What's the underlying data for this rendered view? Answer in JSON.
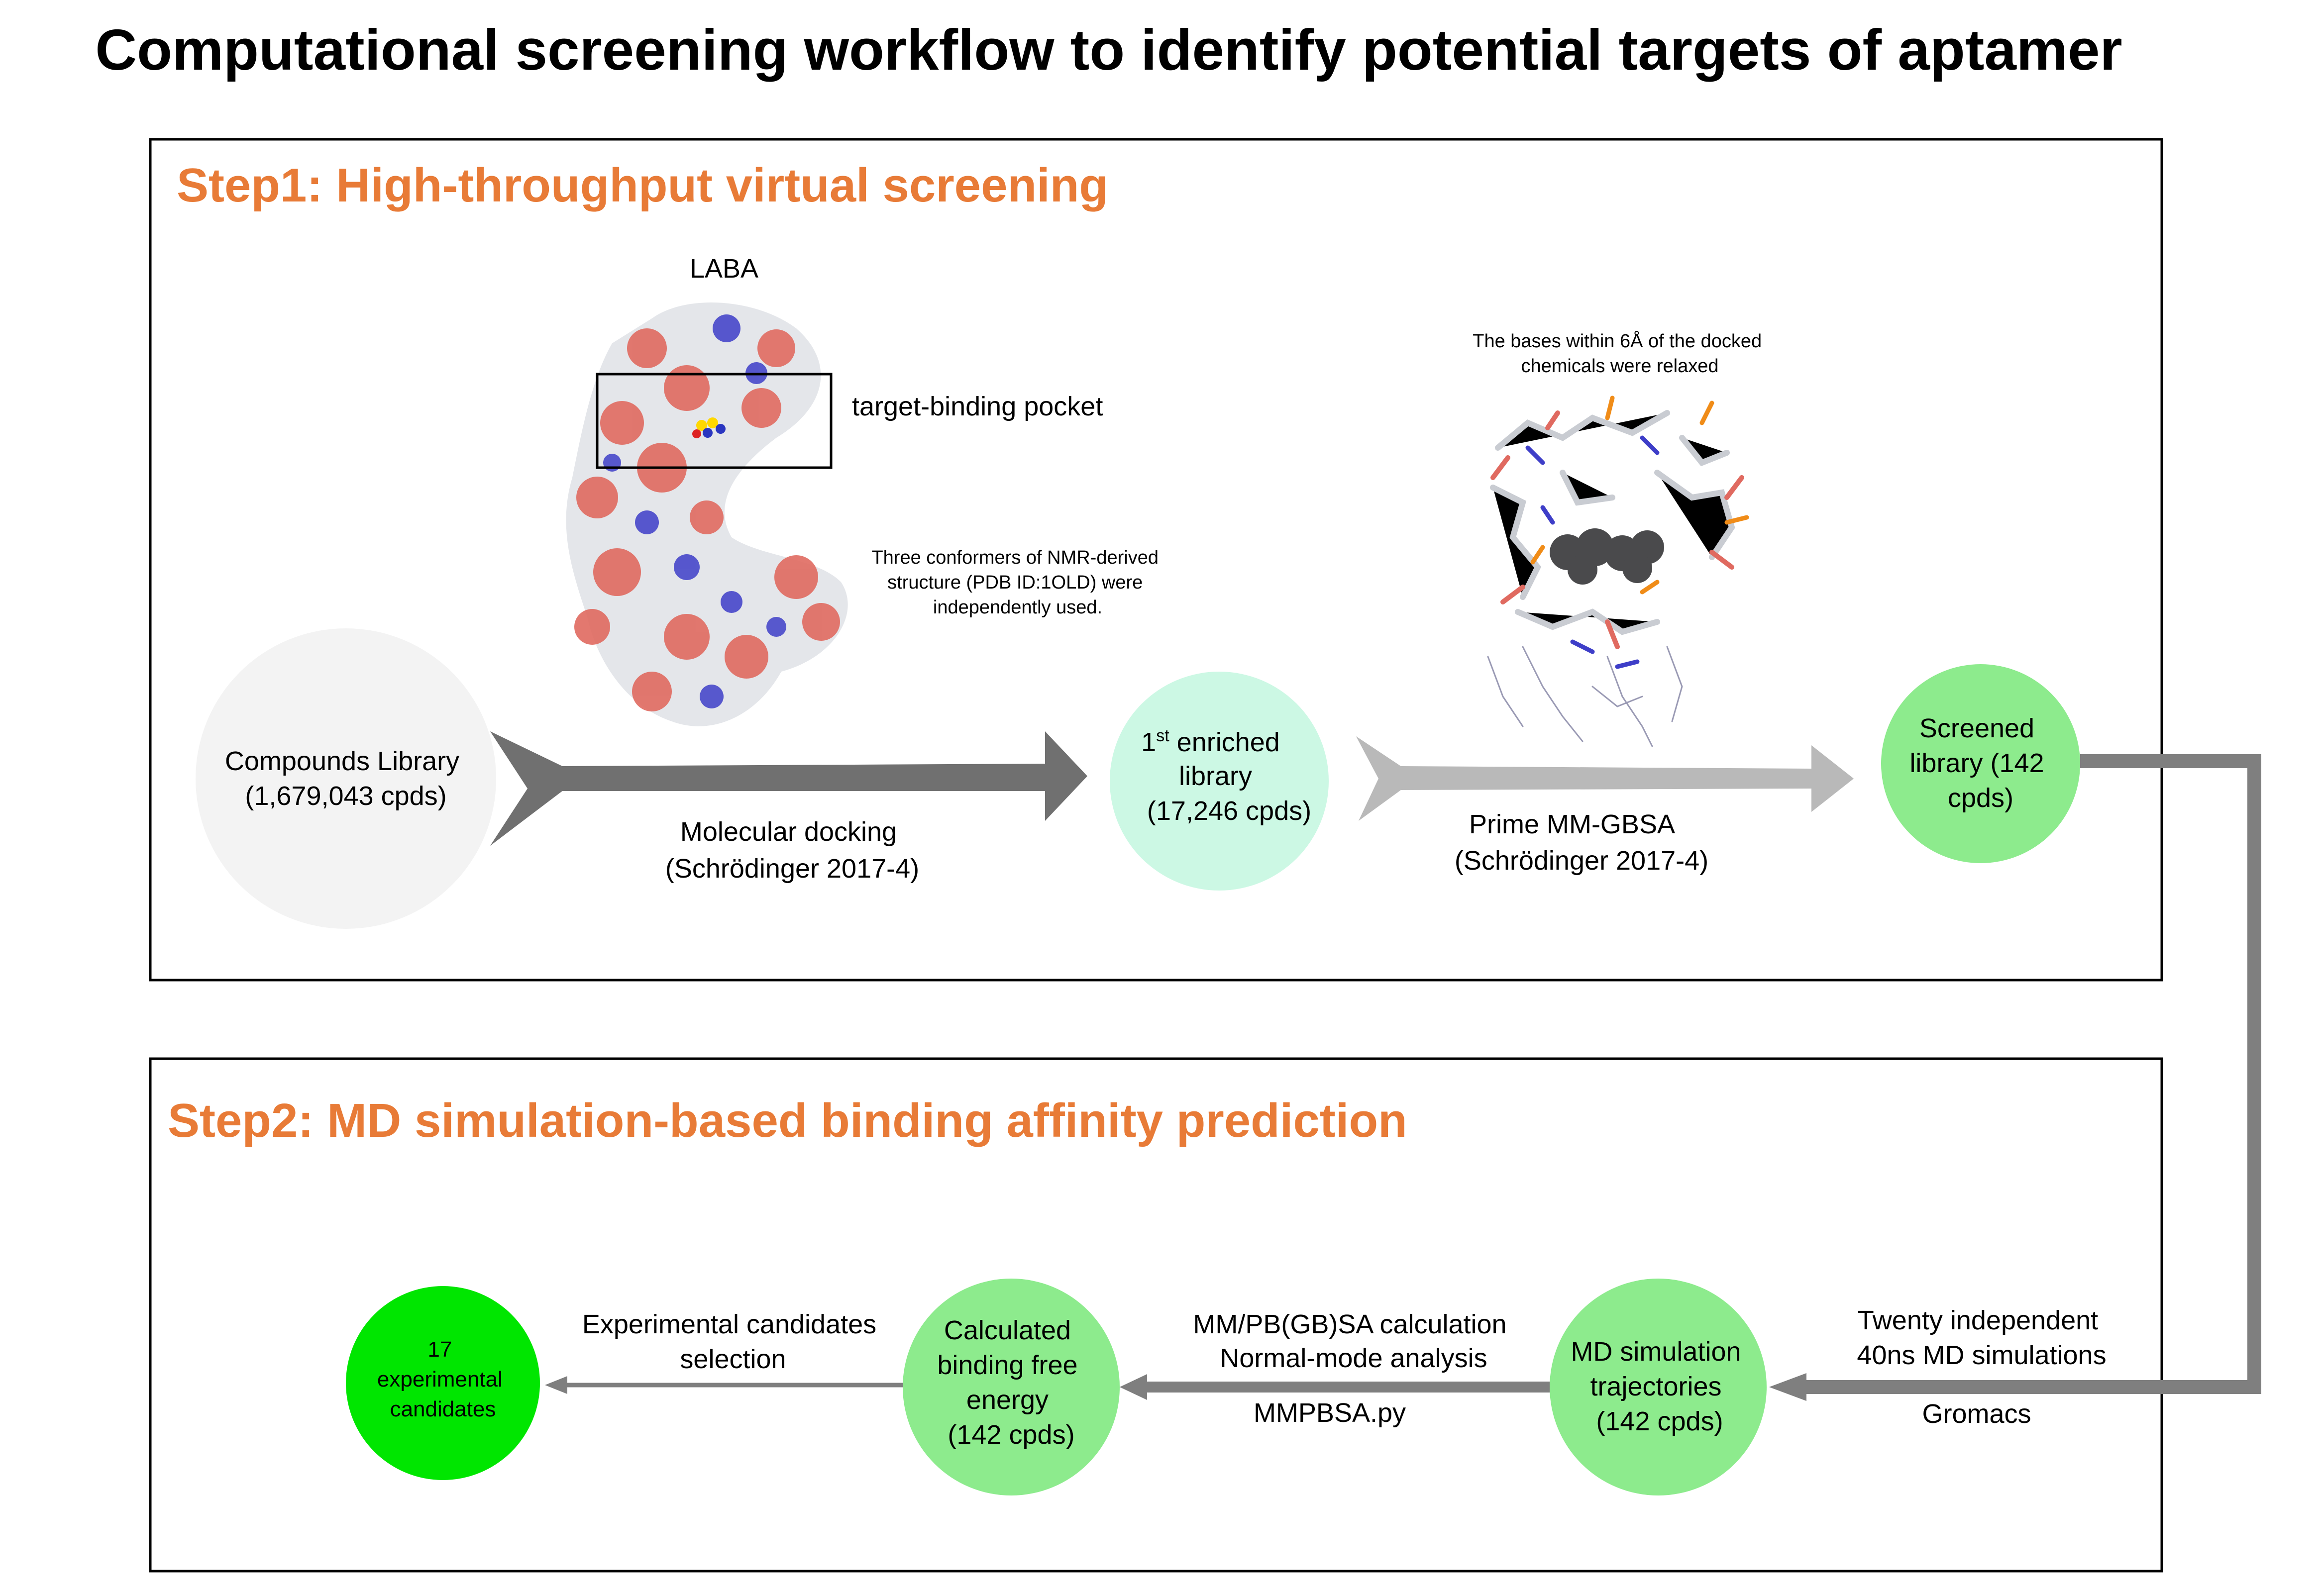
{
  "title": "Computational screening workflow to identify potential targets of aptamer",
  "colors": {
    "step_heading": "#E87B37",
    "box_border": "#000000",
    "circle_compounds": "#F3F3F3",
    "circle_enriched": "#CCF8E4",
    "circle_screened": "#8DEB8D",
    "circle_md": "#8DEB8D",
    "circle_free_energy": "#8DEB8D",
    "circle_experimental": "#00E600",
    "arrow_dark": "#707070",
    "arrow_light": "#B9B9B9",
    "connector": "#7F7F7F",
    "surface_neg": "#E06A60",
    "surface_pos": "#3E3EC8",
    "surface_neutral": "#E4E6EA"
  },
  "step1": {
    "heading": "Step1: High-throughput virtual screening",
    "laba_label": "LABA",
    "pocket_label": "target-binding pocket",
    "conformer_note": [
      "Three conformers of NMR-derived",
      "structure (PDB ID:1OLD) were",
      "independently used."
    ],
    "relax_note": [
      "The bases within 6Å of the docked",
      "chemicals were relaxed"
    ],
    "compounds": {
      "line1": "Compounds Library",
      "line2": "(1,679,043 cpds)"
    },
    "docking": {
      "line1": "Molecular docking",
      "line2": "(Schrödinger 2017-4)"
    },
    "enriched": {
      "ordinal": "1",
      "sup": "st",
      "line1_rest": " enriched",
      "line2": "library",
      "line3": "(17,246 cpds)"
    },
    "mmgbsa": {
      "line1": "Prime MM-GBSA",
      "line2": "(Schrödinger 2017-4)"
    },
    "screened": {
      "line1": "Screened",
      "line2": "library (142",
      "line3": "cpds)"
    }
  },
  "step2": {
    "heading": "Step2: MD simulation-based binding affinity prediction",
    "md_sims": {
      "line1": "Twenty independent",
      "line2": "40ns MD simulations"
    },
    "gromacs": "Gromacs",
    "md_traj": {
      "line1": "MD simulation",
      "line2": "trajectories",
      "line3": "(142 cpds)"
    },
    "mmpbsa": {
      "line1": "MM/PB(GB)SA calculation",
      "line2": "Normal-mode analysis"
    },
    "mmpbsa_py": "MMPBSA.py",
    "free_energy": {
      "line1": "Calculated",
      "line2": "binding free",
      "line3": "energy",
      "line4": "(142 cpds)"
    },
    "exp_selection": {
      "line1": "Experimental candidates",
      "line2": "selection"
    },
    "experimental": {
      "line1": "17",
      "line2": "experimental",
      "line3": "candidates"
    }
  }
}
